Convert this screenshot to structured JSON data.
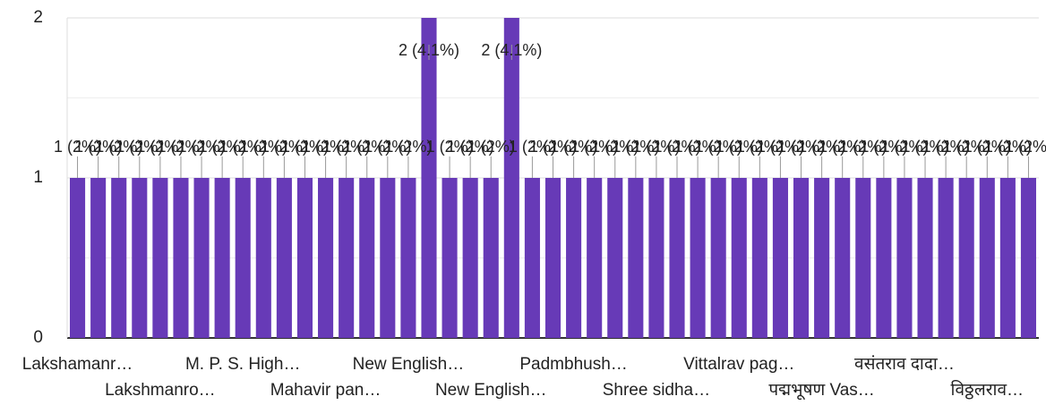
{
  "chart_data": {
    "type": "bar",
    "categories": [
      "Lakshamanr…",
      null,
      null,
      null,
      "Lakshmanro…",
      null,
      null,
      null,
      "M. P. S. High…",
      null,
      null,
      null,
      "Mahavir pan…",
      null,
      null,
      null,
      "New English…",
      null,
      null,
      null,
      "New English…",
      null,
      null,
      null,
      "Padmbhush…",
      null,
      null,
      null,
      "Shree sidha…",
      null,
      null,
      null,
      "Vittalrav pag…",
      null,
      null,
      null,
      "पद्मभूषण Vas…",
      null,
      null,
      null,
      "वसंतराव दादा…",
      null,
      null,
      null,
      "विठ्ठलराव…",
      null,
      null
    ],
    "values": [
      1,
      1,
      1,
      1,
      1,
      1,
      1,
      1,
      1,
      1,
      1,
      1,
      1,
      1,
      1,
      1,
      1,
      2,
      1,
      1,
      1,
      2,
      1,
      1,
      1,
      1,
      1,
      1,
      1,
      1,
      1,
      1,
      1,
      1,
      1,
      1,
      1,
      1,
      1,
      1,
      1,
      1,
      1,
      1,
      1,
      1,
      1
    ],
    "value_labels": [
      "1 (2%)",
      "1 (2%)",
      "1 (2%)",
      "1 (2%)",
      "1 (2%)",
      "1 (2%)",
      "1 (2%)",
      "1 (2%)",
      "1 (2%)",
      "1 (2%)",
      "1 (2%)",
      "1 (2%)",
      "1 (2%)",
      "1 (2%)",
      "1 (2%)",
      "1 (2%)",
      "1 (2%)",
      "2 (4.1%)",
      "1 (2%)",
      "1 (2%)",
      "1 (2%)",
      "2 (4.1%)",
      "1 (2%)",
      "1 (2%)",
      "1 (2%)",
      "1 (2%)",
      "1 (2%)",
      "1 (2%)",
      "1 (2%)",
      "1 (2%)",
      "1 (2%)",
      "1 (2%)",
      "1 (2%)",
      "1 (2%)",
      "1 (2%)",
      "1 (2%)",
      "1 (2%)",
      "1 (2%)",
      "1 (2%)",
      "1 (2%)",
      "1 (2%)",
      "1 (2%)",
      "1 (2%)",
      "1 (2%)",
      "1 (2%)",
      "1 (2%)",
      "1 (2%)"
    ],
    "color": "#673ab7",
    "ylim": [
      0,
      2
    ],
    "yticks": [
      0,
      1,
      2
    ],
    "minor_yticks": [
      0.5,
      1.5
    ],
    "grid": true
  }
}
